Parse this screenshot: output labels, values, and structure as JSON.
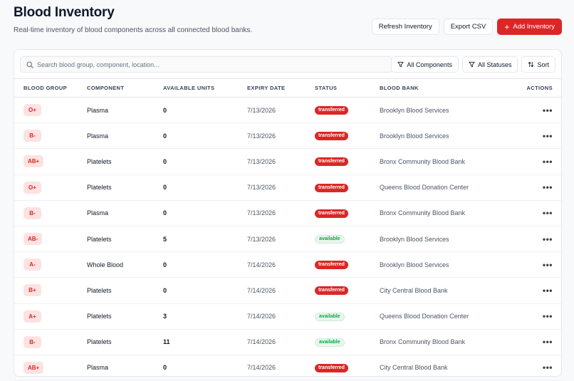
{
  "header": {
    "title": "Blood Inventory",
    "subtitle": "Real-time inventory of blood components across all connected blood banks.",
    "refresh_label": "Refresh Inventory",
    "export_label": "Export CSV",
    "add_label": "Add Inventory"
  },
  "toolbar": {
    "search_placeholder": "Search blood group, component, location...",
    "components_filter": "All Components",
    "statuses_filter": "All Statuses",
    "sort_label": "Sort"
  },
  "table": {
    "columns": [
      "BLOOD GROUP",
      "COMPONENT",
      "AVAILABLE UNITS",
      "EXPIRY DATE",
      "STATUS",
      "BLOOD BANK",
      "ACTIONS"
    ],
    "rows": [
      {
        "group": "O+",
        "component": "Plasma",
        "units": "0",
        "expiry": "7/13/2026",
        "status": "transferred",
        "bank": "Brooklyn Blood Services"
      },
      {
        "group": "B-",
        "component": "Plasma",
        "units": "0",
        "expiry": "7/13/2026",
        "status": "transferred",
        "bank": "Brooklyn Blood Services"
      },
      {
        "group": "AB+",
        "component": "Platelets",
        "units": "0",
        "expiry": "7/13/2026",
        "status": "transferred",
        "bank": "Bronx Community Blood Bank"
      },
      {
        "group": "O+",
        "component": "Platelets",
        "units": "0",
        "expiry": "7/13/2026",
        "status": "transferred",
        "bank": "Queens Blood Donation Center"
      },
      {
        "group": "B-",
        "component": "Plasma",
        "units": "0",
        "expiry": "7/13/2026",
        "status": "transferred",
        "bank": "Bronx Community Blood Bank"
      },
      {
        "group": "AB-",
        "component": "Platelets",
        "units": "5",
        "expiry": "7/13/2026",
        "status": "available",
        "bank": "Brooklyn Blood Services"
      },
      {
        "group": "A-",
        "component": "Whole Blood",
        "units": "0",
        "expiry": "7/14/2026",
        "status": "transferred",
        "bank": "Brooklyn Blood Services"
      },
      {
        "group": "B+",
        "component": "Platelets",
        "units": "0",
        "expiry": "7/14/2026",
        "status": "transferred",
        "bank": "City Central Blood Bank"
      },
      {
        "group": "A+",
        "component": "Platelets",
        "units": "3",
        "expiry": "7/14/2026",
        "status": "available",
        "bank": "Queens Blood Donation Center"
      },
      {
        "group": "B-",
        "component": "Platelets",
        "units": "11",
        "expiry": "7/14/2026",
        "status": "available",
        "bank": "Bronx Community Blood Bank"
      },
      {
        "group": "AB+",
        "component": "Plasma",
        "units": "0",
        "expiry": "7/14/2026",
        "status": "transferred",
        "bank": "City Central Blood Bank"
      }
    ],
    "action_glyph": "•••"
  },
  "colors": {
    "accent": "#dc2626",
    "available": "#16a34a",
    "badge_bg": "#fde2e2"
  },
  "icons": {
    "search": "search-icon",
    "filter": "filter-icon",
    "sort": "sort-icon",
    "plus": "plus-icon",
    "more": "more-horizontal-icon"
  }
}
